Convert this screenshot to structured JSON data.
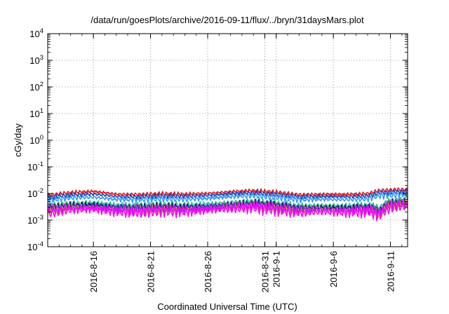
{
  "chart_data": {
    "type": "line",
    "title": "/data/run/goesPlots/archive/2016-09-11/flux/../bryn/31daysMars.plot",
    "xlabel": "Coordinated Universal Time (UTC)",
    "ylabel": "cGy/day",
    "yscale": "log",
    "ylim": [
      0.0001,
      10000
    ],
    "xlim": [
      "2016-08-12",
      "2016-09-12T12:00"
    ],
    "grid": true,
    "x_ticks": [
      "2016-8-16",
      "2016-8-21",
      "2016-8-26",
      "2016-8-31",
      "2016-9-1",
      "2016-9-6",
      "2016-9-11"
    ],
    "y_ticks": [
      {
        "base": "10",
        "exp": "-4"
      },
      {
        "base": "10",
        "exp": "-3"
      },
      {
        "base": "10",
        "exp": "-2"
      },
      {
        "base": "10",
        "exp": "-1"
      },
      {
        "base": "10",
        "exp": "0"
      },
      {
        "base": "10",
        "exp": "1"
      },
      {
        "base": "10",
        "exp": "2"
      },
      {
        "base": "10",
        "exp": "3"
      },
      {
        "base": "10",
        "exp": "4"
      }
    ],
    "x": [
      "2016-08-12",
      "2016-08-14",
      "2016-08-16",
      "2016-08-18",
      "2016-08-20",
      "2016-08-22",
      "2016-08-24",
      "2016-08-26",
      "2016-08-28",
      "2016-08-30",
      "2016-09-01",
      "2016-09-03",
      "2016-09-05",
      "2016-09-07",
      "2016-09-09",
      "2016-09-10",
      "2016-09-11",
      "2016-09-12"
    ],
    "series": [
      {
        "color": "#e41a1c",
        "values": [
          0.0085,
          0.011,
          0.012,
          0.0095,
          0.0092,
          0.0098,
          0.0094,
          0.0102,
          0.0118,
          0.0128,
          0.0112,
          0.009,
          0.0095,
          0.0092,
          0.0098,
          0.013,
          0.0135,
          0.014
        ]
      },
      {
        "color": "#1f3fb4",
        "values": [
          0.007,
          0.0088,
          0.0095,
          0.0078,
          0.0075,
          0.008,
          0.0078,
          0.0085,
          0.0098,
          0.0105,
          0.0092,
          0.0075,
          0.0078,
          0.0076,
          0.008,
          0.0105,
          0.011,
          0.0115
        ]
      },
      {
        "color": "#3399ff",
        "values": [
          0.0055,
          0.0068,
          0.0072,
          0.006,
          0.0058,
          0.0062,
          0.006,
          0.0066,
          0.0076,
          0.0082,
          0.0071,
          0.0058,
          0.006,
          0.0058,
          0.0062,
          0.0082,
          0.0085,
          0.009
        ]
      },
      {
        "color": "#20c090",
        "values": [
          0.0032,
          0.0042,
          0.0045,
          0.0036,
          0.0035,
          0.0038,
          0.0036,
          0.004,
          0.0046,
          0.005,
          0.0042,
          0.0034,
          0.0036,
          0.0034,
          0.0036,
          0.0028,
          0.0052,
          0.0055
        ]
      },
      {
        "color": "#0a1a60",
        "values": [
          0.0028,
          0.0035,
          0.0037,
          0.003,
          0.0029,
          0.0031,
          0.003,
          0.0033,
          0.0038,
          0.0041,
          0.0035,
          0.0028,
          0.003,
          0.0028,
          0.003,
          0.0022,
          0.0043,
          0.0046
        ]
      },
      {
        "color": "#e8c800",
        "values": [
          0.0022,
          0.0028,
          0.003,
          0.0024,
          0.0023,
          0.0025,
          0.0024,
          0.0027,
          0.0031,
          0.0034,
          0.0028,
          0.0022,
          0.0024,
          0.0023,
          0.0025,
          0.0018,
          0.0036,
          0.0038
        ]
      },
      {
        "color": "#a020f0",
        "values": [
          0.0024,
          0.003,
          0.0032,
          0.0026,
          0.0025,
          0.0027,
          0.0026,
          0.0029,
          0.0033,
          0.0036,
          0.003,
          0.0024,
          0.0026,
          0.0024,
          0.0026,
          0.002,
          0.0038,
          0.004
        ]
      },
      {
        "color": "#ff00ff",
        "values": [
          0.0018,
          0.0024,
          0.0026,
          0.002,
          0.0019,
          0.0021,
          0.002,
          0.0023,
          0.0026,
          0.0029,
          0.0024,
          0.0018,
          0.002,
          0.0019,
          0.0021,
          0.0015,
          0.003,
          0.0033
        ]
      }
    ]
  }
}
